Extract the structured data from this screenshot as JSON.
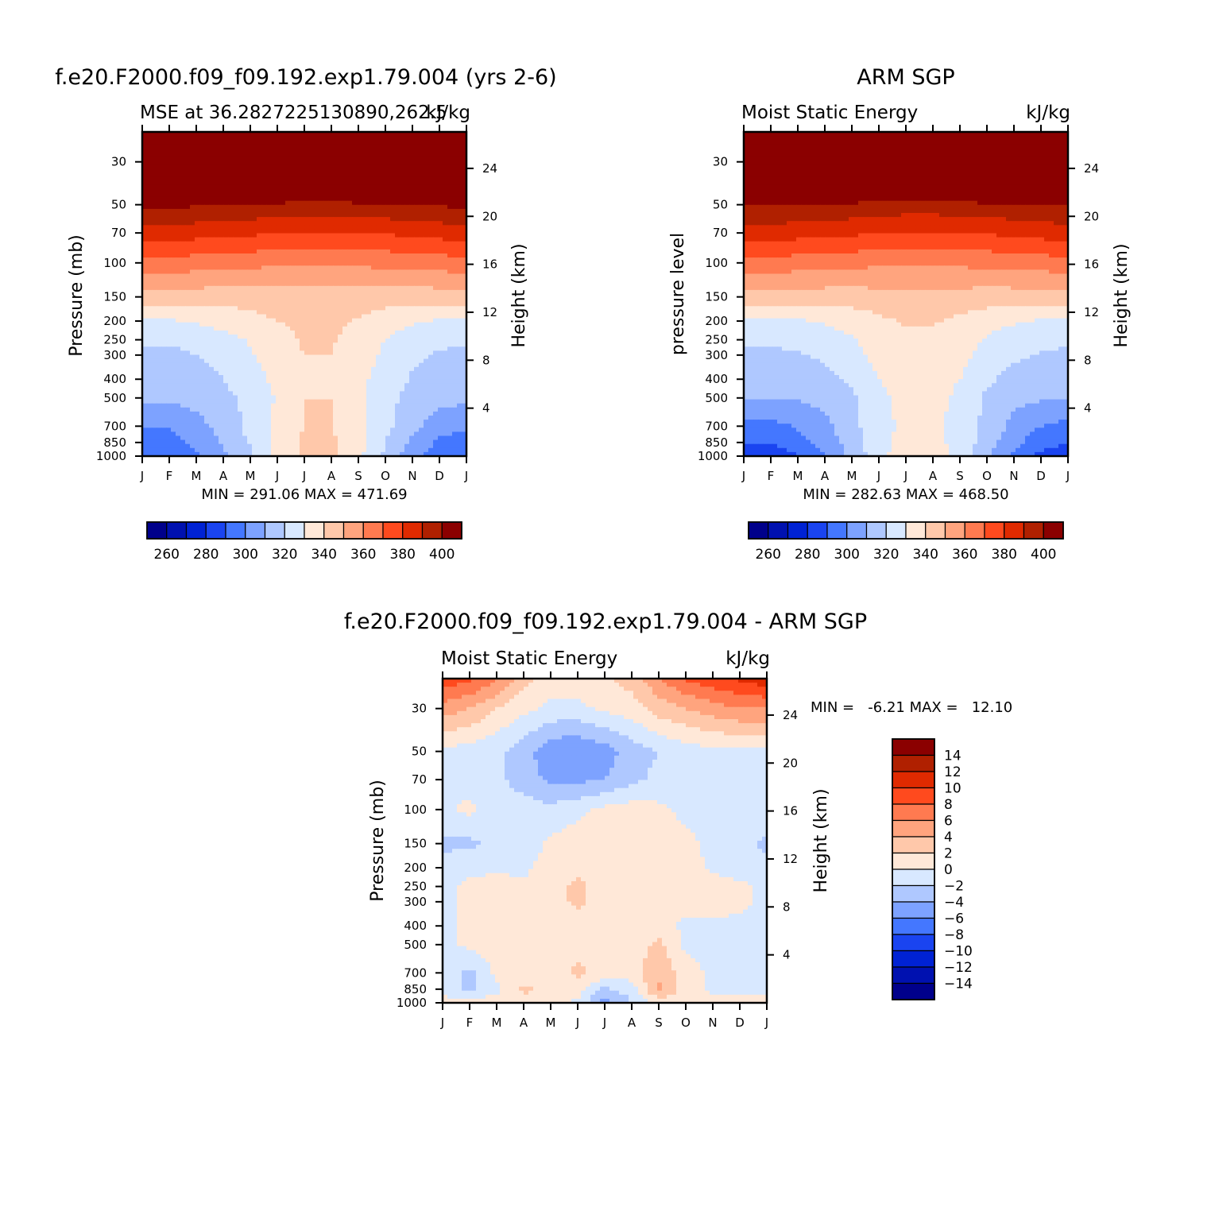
{
  "colors": {
    "model_obs_scale": [
      "#00008b",
      "#0011b0",
      "#0022d4",
      "#1a44f0",
      "#4477ff",
      "#7da2ff",
      "#afc8ff",
      "#d8e8ff",
      "#ffe8d8",
      "#ffc8aa",
      "#ffa47e",
      "#ff7a50",
      "#ff4a1e",
      "#e02a00",
      "#b02000",
      "#8b0000"
    ],
    "diff_scale": [
      "#00008b",
      "#0011b0",
      "#0022d4",
      "#1a44f0",
      "#4477ff",
      "#7da2ff",
      "#afc8ff",
      "#d8e8ff",
      "#ffe8d8",
      "#ffc8aa",
      "#ffa47e",
      "#ff7a50",
      "#ff4a1e",
      "#e02a00",
      "#b02000",
      "#8b0000"
    ]
  },
  "chart_data": [
    {
      "type": "heatmap",
      "title": "f.e20.F2000.f09_f09.192.exp1.79.004 (yrs 2-6)",
      "subtitle_left": "MSE at 36.2827225130890,262.5",
      "subtitle_right": "kJ/kg",
      "xlabel": "",
      "ylabel": "Pressure (mb)",
      "ylabel_right": "Height (km)",
      "x_ticks": [
        "J",
        "F",
        "M",
        "A",
        "M",
        "J",
        "J",
        "A",
        "S",
        "O",
        "N",
        "D",
        "J"
      ],
      "y_ticks": [
        "30",
        "50",
        "70",
        "100",
        "150",
        "200",
        "250",
        "300",
        "400",
        "500",
        "700",
        "850",
        "1000"
      ],
      "y_ticks_right": [
        "24",
        "20",
        "16",
        "12",
        "8",
        "4"
      ],
      "min_max_text": "MIN = 291.06 MAX = 471.69",
      "colorbar_labels": [
        "260",
        "280",
        "300",
        "320",
        "340",
        "360",
        "380",
        "400"
      ],
      "colorbar_levels": [
        250,
        260,
        270,
        280,
        290,
        300,
        310,
        320,
        330,
        340,
        350,
        360,
        370,
        380,
        390,
        400
      ],
      "months": [
        "J",
        "F",
        "M",
        "A",
        "M",
        "J",
        "J",
        "A",
        "S",
        "O",
        "N",
        "D",
        "J"
      ],
      "levels_mb": [
        20,
        30,
        50,
        70,
        100,
        150,
        200,
        250,
        300,
        400,
        500,
        700,
        850,
        1000
      ],
      "values": [
        [
          460,
          460,
          460,
          460,
          460,
          460,
          460,
          460,
          460,
          460,
          460,
          460,
          460
        ],
        [
          450,
          450,
          450,
          450,
          450,
          450,
          450,
          450,
          450,
          450,
          450,
          450,
          450
        ],
        [
          402,
          402,
          401,
          400,
          399,
          398,
          397,
          397,
          398,
          399,
          400,
          401,
          402
        ],
        [
          385,
          385,
          384,
          383,
          382,
          380,
          379,
          379,
          380,
          381,
          382,
          384,
          385
        ],
        [
          366,
          366,
          365,
          364,
          363,
          362,
          361,
          361,
          362,
          363,
          364,
          365,
          366
        ],
        [
          345,
          345,
          345,
          344,
          344,
          345,
          346,
          346,
          345,
          344,
          344,
          345,
          345
        ],
        [
          329,
          329,
          331,
          334,
          337,
          340,
          342,
          342,
          339,
          335,
          331,
          329,
          329
        ],
        [
          321,
          321,
          323,
          326,
          331,
          337,
          341,
          341,
          336,
          330,
          325,
          322,
          321
        ],
        [
          318,
          318,
          320,
          324,
          329,
          336,
          340,
          340,
          335,
          328,
          322,
          319,
          318
        ],
        [
          313,
          313,
          316,
          320,
          325,
          333,
          339,
          339,
          333,
          325,
          319,
          315,
          313
        ],
        [
          312,
          312,
          314,
          318,
          322,
          331,
          340,
          340,
          332,
          323,
          317,
          314,
          312
        ],
        [
          301,
          301,
          306,
          314,
          323,
          333,
          340,
          340,
          333,
          323,
          313,
          304,
          301
        ],
        [
          296,
          296,
          302,
          311,
          321,
          333,
          342,
          342,
          333,
          320,
          308,
          298,
          296
        ],
        [
          291,
          291,
          298,
          308,
          318,
          333,
          342,
          342,
          333,
          318,
          304,
          294,
          291
        ]
      ]
    },
    {
      "type": "heatmap",
      "title": "ARM SGP",
      "subtitle_left": "Moist Static Energy",
      "subtitle_right": "kJ/kg",
      "xlabel": "",
      "ylabel": "pressure level",
      "ylabel_right": "Height (km)",
      "x_ticks": [
        "J",
        "F",
        "M",
        "A",
        "M",
        "J",
        "J",
        "A",
        "S",
        "O",
        "N",
        "D",
        "J"
      ],
      "y_ticks": [
        "30",
        "50",
        "70",
        "100",
        "150",
        "200",
        "250",
        "300",
        "400",
        "500",
        "700",
        "850",
        "1000"
      ],
      "y_ticks_right": [
        "24",
        "20",
        "16",
        "12",
        "8",
        "4"
      ],
      "min_max_text": "MIN = 282.63 MAX = 468.50",
      "colorbar_labels": [
        "260",
        "280",
        "300",
        "320",
        "340",
        "360",
        "380",
        "400"
      ],
      "colorbar_levels": [
        250,
        260,
        270,
        280,
        290,
        300,
        310,
        320,
        330,
        340,
        350,
        360,
        370,
        380,
        390,
        400
      ],
      "months": [
        "J",
        "F",
        "M",
        "A",
        "M",
        "J",
        "J",
        "A",
        "S",
        "O",
        "N",
        "D",
        "J"
      ],
      "levels_mb": [
        20,
        30,
        50,
        70,
        100,
        150,
        200,
        250,
        300,
        400,
        500,
        700,
        850,
        1000
      ],
      "values": [
        [
          460,
          460,
          460,
          460,
          460,
          460,
          460,
          460,
          460,
          460,
          460,
          460,
          460
        ],
        [
          450,
          450,
          450,
          450,
          450,
          450,
          450,
          450,
          450,
          450,
          450,
          450,
          450
        ],
        [
          401,
          401,
          400,
          399,
          398,
          397,
          396,
          396,
          397,
          398,
          399,
          400,
          401
        ],
        [
          385,
          385,
          384,
          383,
          382,
          380,
          379,
          379,
          380,
          381,
          382,
          384,
          385
        ],
        [
          366,
          366,
          365,
          364,
          363,
          362,
          361,
          361,
          362,
          363,
          364,
          365,
          366
        ],
        [
          345,
          345,
          345,
          345,
          345,
          346,
          347,
          347,
          346,
          345,
          345,
          345,
          345
        ],
        [
          329,
          329,
          329,
          331,
          334,
          338,
          341,
          341,
          338,
          334,
          331,
          329,
          329
        ],
        [
          322,
          322,
          323,
          325,
          329,
          334,
          338,
          338,
          334,
          329,
          325,
          323,
          322
        ],
        [
          318,
          318,
          319,
          322,
          327,
          333,
          336,
          336,
          333,
          327,
          322,
          319,
          318
        ],
        [
          312,
          312,
          313,
          316,
          322,
          330,
          334,
          334,
          330,
          322,
          316,
          313,
          312
        ],
        [
          310,
          310,
          311,
          313,
          318,
          328,
          333,
          333,
          328,
          318,
          313,
          311,
          310
        ],
        [
          297,
          297,
          301,
          307,
          317,
          327,
          332,
          332,
          327,
          317,
          307,
          300,
          297
        ],
        [
          291,
          291,
          296,
          304,
          315,
          327,
          333,
          333,
          327,
          315,
          303,
          294,
          291
        ],
        [
          283,
          283,
          290,
          300,
          312,
          327,
          336,
          336,
          327,
          312,
          298,
          287,
          283
        ]
      ]
    },
    {
      "type": "heatmap",
      "title": "f.e20.F2000.f09_f09.192.exp1.79.004 - ARM SGP",
      "subtitle_left": "Moist Static Energy",
      "subtitle_right": "kJ/kg",
      "xlabel": "",
      "ylabel": "Pressure (mb)",
      "ylabel_right": "Height (km)",
      "x_ticks": [
        "J",
        "F",
        "M",
        "A",
        "M",
        "J",
        "J",
        "A",
        "S",
        "O",
        "N",
        "D",
        "J"
      ],
      "y_ticks": [
        "30",
        "50",
        "70",
        "100",
        "150",
        "200",
        "250",
        "300",
        "400",
        "500",
        "700",
        "850",
        "1000"
      ],
      "y_ticks_right": [
        "24",
        "20",
        "16",
        "12",
        "8",
        "4"
      ],
      "min_max_text": "MIN =   -6.21 MAX =   12.10",
      "colorbar_labels": [
        "14",
        "12",
        "10",
        "8",
        "6",
        "4",
        "2",
        "0",
        "−2",
        "−4",
        "−6",
        "−8",
        "−10",
        "−12",
        "−14"
      ],
      "colorbar_levels": [
        -16,
        -14,
        -12,
        -10,
        -8,
        -6,
        -4,
        -2,
        0,
        2,
        4,
        6,
        8,
        10,
        12,
        14
      ],
      "months": [
        "J",
        "F",
        "M",
        "A",
        "M",
        "J",
        "J",
        "A",
        "S",
        "O",
        "N",
        "D",
        "J"
      ],
      "levels_mb": [
        20,
        30,
        50,
        70,
        100,
        150,
        200,
        250,
        300,
        400,
        500,
        700,
        850,
        1000
      ],
      "values": [
        [
          10,
          9,
          7,
          3,
          1,
          1,
          2,
          3,
          6,
          9,
          10,
          11,
          12
        ],
        [
          5,
          4,
          2,
          0.5,
          -0.5,
          -0.5,
          0.5,
          1,
          3,
          4,
          5,
          6,
          6
        ],
        [
          -0.5,
          -1,
          -1.5,
          -3,
          -5.5,
          -6,
          -5,
          -3,
          -2,
          -1,
          -0.5,
          -0.5,
          -0.5
        ],
        [
          -0.5,
          -1,
          -1.5,
          -3,
          -4.5,
          -4.5,
          -4,
          -2.5,
          -1.5,
          -1,
          -0.5,
          -0.5,
          -0.5
        ],
        [
          -0.5,
          0.5,
          -1,
          -1,
          -1.5,
          -0.5,
          0.5,
          1,
          0.5,
          -0.5,
          -0.5,
          -0.5,
          -1
        ],
        [
          -2.5,
          -2.5,
          -1.5,
          -1.5,
          0.5,
          1,
          1,
          1,
          1,
          0.5,
          -0.5,
          -1,
          -2.5
        ],
        [
          -1,
          -0.5,
          -0.5,
          -0.5,
          1,
          1.5,
          1,
          1,
          1,
          1,
          -0.5,
          -1,
          -1.5
        ],
        [
          -0.5,
          0.5,
          1,
          0.5,
          1,
          2.5,
          1,
          1,
          1,
          1,
          1,
          0.5,
          -0.5
        ],
        [
          -0.5,
          0.5,
          1,
          0.5,
          1,
          2.5,
          1,
          1,
          1,
          1,
          1,
          0.5,
          -0.5
        ],
        [
          -0.5,
          0.5,
          1,
          1,
          1,
          1,
          1,
          1,
          1,
          -0.5,
          -0.5,
          -0.5,
          -0.5
        ],
        [
          -0.5,
          0.5,
          1,
          1,
          1,
          1,
          1,
          1,
          2.5,
          -0.5,
          -0.5,
          -0.5,
          -0.5
        ],
        [
          -1,
          -2.5,
          0.5,
          1,
          1,
          2.5,
          1,
          1,
          3.5,
          1,
          -0.5,
          -0.5,
          -0.5
        ],
        [
          -1,
          -2.5,
          -0.5,
          2.5,
          1,
          1,
          -2.5,
          -1,
          4.5,
          1,
          -0.5,
          -0.5,
          -0.5
        ],
        [
          1,
          1,
          1,
          1,
          1,
          -0.5,
          -5,
          -2,
          1,
          1,
          1,
          1,
          1
        ]
      ]
    }
  ]
}
